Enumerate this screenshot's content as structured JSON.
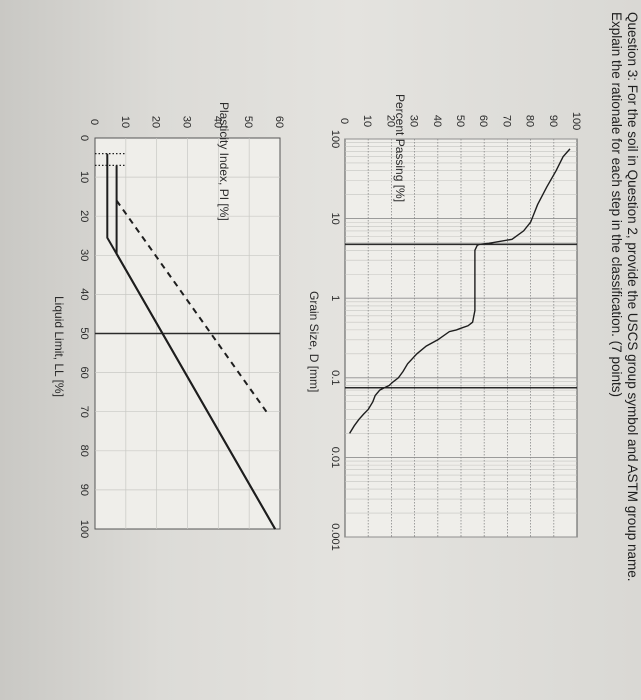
{
  "question": {
    "line1": "Question 3: For the soil in Question 2, provide the USCS group symbol and ASTM group name.",
    "line2": "Explain the rationale for each step in the classification. (7 points)"
  },
  "chart_data": [
    {
      "type": "line",
      "title": "",
      "xlabel": "Grain Size, D [mm]",
      "ylabel": "Percent Passing [%]",
      "x_scale": "log",
      "x_reversed": true,
      "xlim": [
        100,
        0.001
      ],
      "ylim": [
        0,
        100
      ],
      "x_ticks": [
        "100",
        "10",
        "1",
        "0.1",
        "0.01",
        "0.001"
      ],
      "y_ticks": [
        "0",
        "10",
        "20",
        "30",
        "40",
        "50",
        "60",
        "70",
        "80",
        "90",
        "100"
      ],
      "grid": true,
      "series": [
        {
          "x": [
            75,
            60,
            40,
            25,
            15,
            9,
            7,
            5.5,
            4.9,
            4.76,
            4.6,
            4.0,
            2.0,
            1.0,
            0.7,
            0.5,
            0.45,
            0.42,
            0.4,
            0.38,
            0.3,
            0.25,
            0.2,
            0.15,
            0.12,
            0.1,
            0.09,
            0.085,
            0.08,
            0.075,
            0.07,
            0.06,
            0.05,
            0.04,
            0.035,
            0.03,
            0.025,
            0.02
          ],
          "y": [
            97,
            94,
            91,
            87,
            83,
            80,
            77,
            72,
            62,
            58,
            57,
            56,
            56,
            56,
            56,
            55,
            53,
            50,
            48,
            45,
            40,
            35,
            31,
            27,
            25,
            23,
            21,
            20,
            19,
            17,
            15,
            13,
            12,
            10,
            8,
            6,
            4,
            2
          ]
        }
      ],
      "vertical_lines": [
        4.75,
        0.075
      ]
    },
    {
      "type": "line",
      "title": "",
      "xlabel": "Liquid Limit, LL [%]",
      "ylabel": "Plasticity Index, PI [%]",
      "xlim": [
        0,
        100
      ],
      "ylim": [
        0,
        60
      ],
      "x_ticks": [
        "0",
        "10",
        "20",
        "30",
        "40",
        "50",
        "60",
        "70",
        "80",
        "90",
        "100"
      ],
      "y_ticks": [
        "0",
        "10",
        "20",
        "30",
        "40",
        "50",
        "60"
      ],
      "grid": true,
      "series": [
        {
          "style": "solid",
          "x": [
            4,
            25.5,
            100
          ],
          "y": [
            4,
            4,
            58.4
          ]
        },
        {
          "style": "solid",
          "x": [
            7,
            29.6,
            100
          ],
          "y": [
            7,
            7,
            58.4
          ]
        },
        {
          "style": "dashed",
          "x": [
            16,
            70
          ],
          "y": [
            7,
            55.6
          ]
        },
        {
          "style": "dotted",
          "x": [
            4,
            4
          ],
          "y": [
            0,
            10
          ]
        },
        {
          "style": "dotted",
          "x": [
            7,
            7
          ],
          "y": [
            0,
            10
          ]
        }
      ],
      "vertical_lines": [
        50
      ]
    }
  ]
}
